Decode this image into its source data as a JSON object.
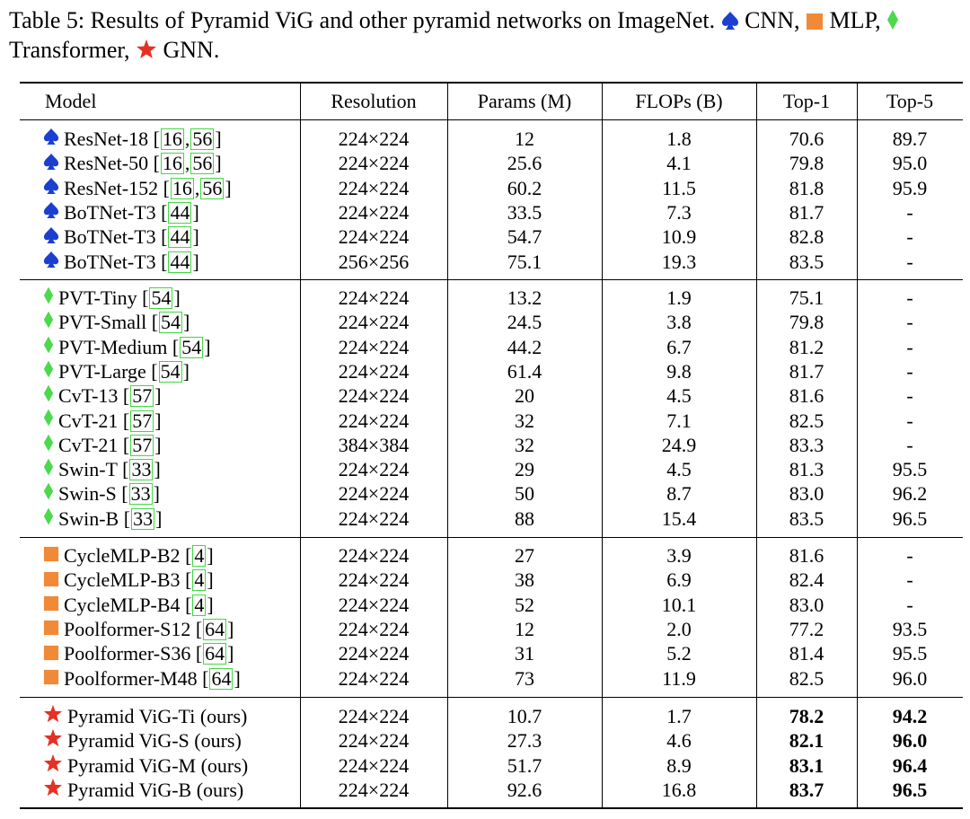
{
  "caption": {
    "line1": "Table 5: Results of Pyramid ViG and other pyramid networks on ImageNet.",
    "cnn_label": "CNN,",
    "mlp_label": "MLP,",
    "line2_label": "Transformer,",
    "gnn_label": "GNN."
  },
  "colors": {
    "cnn": "#1c3fd1",
    "transformer": "#4cd94c",
    "mlp": "#f08a38",
    "gnn": "#e63024",
    "ref_box": "#44d744"
  },
  "headers": [
    "Model",
    "Resolution",
    "Params (M)",
    "FLOPs (B)",
    "Top-1",
    "Top-5"
  ],
  "rows": [
    {
      "icon": "cnn",
      "model": "ResNet-18",
      "refs": [
        "16",
        "56"
      ],
      "res": "224×224",
      "params": "12",
      "flops": "1.8",
      "top1": "70.6",
      "top5": "89.7",
      "bold": false
    },
    {
      "icon": "cnn",
      "model": "ResNet-50",
      "refs": [
        "16",
        "56"
      ],
      "res": "224×224",
      "params": "25.6",
      "flops": "4.1",
      "top1": "79.8",
      "top5": "95.0",
      "bold": false
    },
    {
      "icon": "cnn",
      "model": "ResNet-152",
      "refs": [
        "16",
        "56"
      ],
      "res": "224×224",
      "params": "60.2",
      "flops": "11.5",
      "top1": "81.8",
      "top5": "95.9",
      "bold": false
    },
    {
      "icon": "cnn",
      "model": "BoTNet-T3",
      "refs": [
        "44"
      ],
      "res": "224×224",
      "params": "33.5",
      "flops": "7.3",
      "top1": "81.7",
      "top5": "-",
      "bold": false
    },
    {
      "icon": "cnn",
      "model": "BoTNet-T3",
      "refs": [
        "44"
      ],
      "res": "224×224",
      "params": "54.7",
      "flops": "10.9",
      "top1": "82.8",
      "top5": "-",
      "bold": false
    },
    {
      "icon": "cnn",
      "model": "BoTNet-T3",
      "refs": [
        "44"
      ],
      "res": "256×256",
      "params": "75.1",
      "flops": "19.3",
      "top1": "83.5",
      "top5": "-",
      "bold": false
    },
    {
      "icon": "transformer",
      "model": "PVT-Tiny",
      "refs": [
        "54"
      ],
      "res": "224×224",
      "params": "13.2",
      "flops": "1.9",
      "top1": "75.1",
      "top5": "-",
      "bold": false
    },
    {
      "icon": "transformer",
      "model": "PVT-Small",
      "refs": [
        "54"
      ],
      "res": "224×224",
      "params": "24.5",
      "flops": "3.8",
      "top1": "79.8",
      "top5": "-",
      "bold": false
    },
    {
      "icon": "transformer",
      "model": "PVT-Medium",
      "refs": [
        "54"
      ],
      "res": "224×224",
      "params": "44.2",
      "flops": "6.7",
      "top1": "81.2",
      "top5": "-",
      "bold": false
    },
    {
      "icon": "transformer",
      "model": "PVT-Large",
      "refs": [
        "54"
      ],
      "res": "224×224",
      "params": "61.4",
      "flops": "9.8",
      "top1": "81.7",
      "top5": "-",
      "bold": false
    },
    {
      "icon": "transformer",
      "model": "CvT-13",
      "refs": [
        "57"
      ],
      "res": "224×224",
      "params": "20",
      "flops": "4.5",
      "top1": "81.6",
      "top5": "-",
      "bold": false
    },
    {
      "icon": "transformer",
      "model": "CvT-21",
      "refs": [
        "57"
      ],
      "res": "224×224",
      "params": "32",
      "flops": "7.1",
      "top1": "82.5",
      "top5": "-",
      "bold": false
    },
    {
      "icon": "transformer",
      "model": "CvT-21",
      "refs": [
        "57"
      ],
      "res": "384×384",
      "params": "32",
      "flops": "24.9",
      "top1": "83.3",
      "top5": "-",
      "bold": false
    },
    {
      "icon": "transformer",
      "model": "Swin-T",
      "refs": [
        "33"
      ],
      "res": "224×224",
      "params": "29",
      "flops": "4.5",
      "top1": "81.3",
      "top5": "95.5",
      "bold": false
    },
    {
      "icon": "transformer",
      "model": "Swin-S",
      "refs": [
        "33"
      ],
      "res": "224×224",
      "params": "50",
      "flops": "8.7",
      "top1": "83.0",
      "top5": "96.2",
      "bold": false
    },
    {
      "icon": "transformer",
      "model": "Swin-B",
      "refs": [
        "33"
      ],
      "res": "224×224",
      "params": "88",
      "flops": "15.4",
      "top1": "83.5",
      "top5": "96.5",
      "bold": false
    },
    {
      "icon": "mlp",
      "model": "CycleMLP-B2",
      "refs": [
        "4"
      ],
      "res": "224×224",
      "params": "27",
      "flops": "3.9",
      "top1": "81.6",
      "top5": "-",
      "bold": false
    },
    {
      "icon": "mlp",
      "model": "CycleMLP-B3",
      "refs": [
        "4"
      ],
      "res": "224×224",
      "params": "38",
      "flops": "6.9",
      "top1": "82.4",
      "top5": "-",
      "bold": false
    },
    {
      "icon": "mlp",
      "model": "CycleMLP-B4",
      "refs": [
        "4"
      ],
      "res": "224×224",
      "params": "52",
      "flops": "10.1",
      "top1": "83.0",
      "top5": "-",
      "bold": false
    },
    {
      "icon": "mlp",
      "model": "Poolformer-S12",
      "refs": [
        "64"
      ],
      "res": "224×224",
      "params": "12",
      "flops": "2.0",
      "top1": "77.2",
      "top5": "93.5",
      "bold": false
    },
    {
      "icon": "mlp",
      "model": "Poolformer-S36",
      "refs": [
        "64"
      ],
      "res": "224×224",
      "params": "31",
      "flops": "5.2",
      "top1": "81.4",
      "top5": "95.5",
      "bold": false
    },
    {
      "icon": "mlp",
      "model": "Poolformer-M48",
      "refs": [
        "64"
      ],
      "res": "224×224",
      "params": "73",
      "flops": "11.9",
      "top1": "82.5",
      "top5": "96.0",
      "bold": false
    },
    {
      "icon": "gnn",
      "model": "Pyramid ViG-Ti (ours)",
      "refs": [],
      "res": "224×224",
      "params": "10.7",
      "flops": "1.7",
      "top1": "78.2",
      "top5": "94.2",
      "bold": true
    },
    {
      "icon": "gnn",
      "model": "Pyramid ViG-S (ours)",
      "refs": [],
      "res": "224×224",
      "params": "27.3",
      "flops": "4.6",
      "top1": "82.1",
      "top5": "96.0",
      "bold": true
    },
    {
      "icon": "gnn",
      "model": "Pyramid ViG-M (ours)",
      "refs": [],
      "res": "224×224",
      "params": "51.7",
      "flops": "8.9",
      "top1": "83.1",
      "top5": "96.4",
      "bold": true
    },
    {
      "icon": "gnn",
      "model": "Pyramid ViG-B (ours)",
      "refs": [],
      "res": "224×224",
      "params": "92.6",
      "flops": "16.8",
      "top1": "83.7",
      "top5": "96.5",
      "bold": true
    }
  ]
}
